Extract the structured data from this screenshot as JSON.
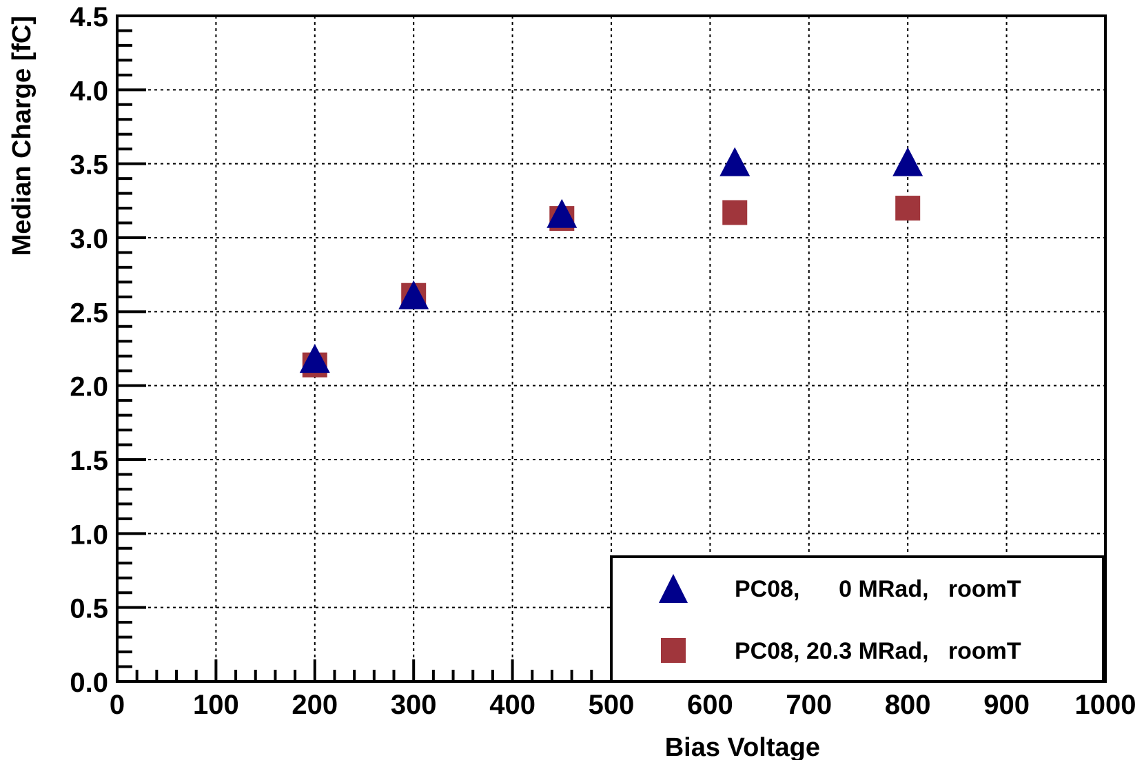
{
  "chart_data": {
    "type": "scatter",
    "title": "",
    "xlabel": "Bias Voltage",
    "ylabel": "Median Charge [fC]",
    "xlim": [
      0,
      1000
    ],
    "ylim": [
      0.0,
      4.5
    ],
    "grid": true,
    "legend_position": "bottom-right",
    "x_ticks": [
      "0",
      "100",
      "200",
      "300",
      "400",
      "500",
      "600",
      "700",
      "800",
      "900",
      "1000"
    ],
    "y_ticks": [
      "0.0",
      "0.5",
      "1.0",
      "1.5",
      "2.0",
      "2.5",
      "3.0",
      "3.5",
      "4.0",
      "4.5"
    ],
    "series": [
      {
        "name": "PC08,      0 MRad,   roomT",
        "marker": "triangle",
        "color": "#00008b",
        "points": [
          {
            "x": 200,
            "y": 2.17
          },
          {
            "x": 300,
            "y": 2.6
          },
          {
            "x": 450,
            "y": 3.15
          },
          {
            "x": 625,
            "y": 3.5
          },
          {
            "x": 800,
            "y": 3.5
          }
        ]
      },
      {
        "name": "PC08, 20.3 MRad,   roomT",
        "marker": "square",
        "color": "#a0363c",
        "points": [
          {
            "x": 200,
            "y": 2.14
          },
          {
            "x": 300,
            "y": 2.61
          },
          {
            "x": 450,
            "y": 3.13
          },
          {
            "x": 625,
            "y": 3.17
          },
          {
            "x": 800,
            "y": 3.2
          }
        ]
      }
    ]
  }
}
